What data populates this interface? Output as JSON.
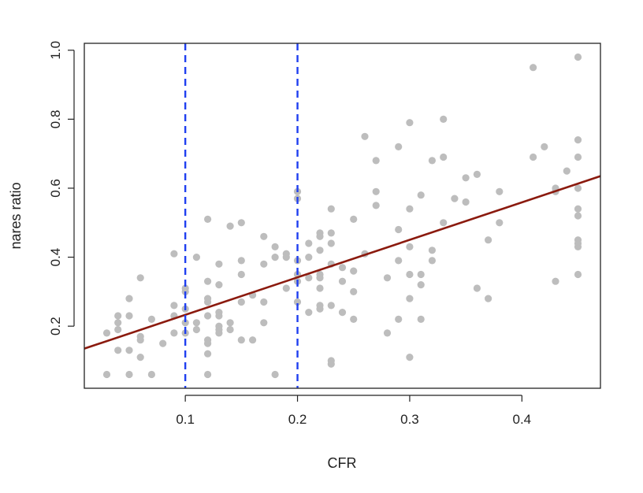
{
  "chart_data": {
    "type": "scatter",
    "title": "",
    "xlabel": "CFR",
    "ylabel": "nares ratio",
    "xlim": [
      0.01,
      0.47
    ],
    "ylim": [
      0.02,
      1.02
    ],
    "xticks": [
      {
        "value": 0.1,
        "label": "0.1"
      },
      {
        "value": 0.2,
        "label": "0.2"
      },
      {
        "value": 0.3,
        "label": "0.3"
      },
      {
        "value": 0.4,
        "label": "0.4"
      }
    ],
    "yticks": [
      {
        "value": 0.2,
        "label": "0.2"
      },
      {
        "value": 0.4,
        "label": "0.4"
      },
      {
        "value": 0.6,
        "label": "0.6"
      },
      {
        "value": 0.8,
        "label": "0.8"
      },
      {
        "value": 1.0,
        "label": "1.0"
      }
    ],
    "grid": false,
    "legend": "none",
    "colors": {
      "points": "#bdbdbd",
      "regression": "#8b1a0e",
      "vlines": "#1f3ff0",
      "axis": "#222222"
    },
    "vlines": [
      0.1,
      0.2
    ],
    "regression_line": {
      "x": [
        0.01,
        0.47
      ],
      "y": [
        0.135,
        0.635
      ]
    },
    "points": [
      [
        0.03,
        0.18
      ],
      [
        0.03,
        0.06
      ],
      [
        0.04,
        0.23
      ],
      [
        0.04,
        0.21
      ],
      [
        0.04,
        0.19
      ],
      [
        0.04,
        0.13
      ],
      [
        0.05,
        0.28
      ],
      [
        0.05,
        0.23
      ],
      [
        0.05,
        0.13
      ],
      [
        0.05,
        0.06
      ],
      [
        0.06,
        0.34
      ],
      [
        0.06,
        0.17
      ],
      [
        0.06,
        0.16
      ],
      [
        0.06,
        0.11
      ],
      [
        0.07,
        0.22
      ],
      [
        0.07,
        0.06
      ],
      [
        0.08,
        0.15
      ],
      [
        0.09,
        0.41
      ],
      [
        0.09,
        0.26
      ],
      [
        0.09,
        0.23
      ],
      [
        0.09,
        0.18
      ],
      [
        0.1,
        0.31
      ],
      [
        0.1,
        0.3
      ],
      [
        0.1,
        0.25
      ],
      [
        0.1,
        0.21
      ],
      [
        0.1,
        0.18
      ],
      [
        0.11,
        0.4
      ],
      [
        0.11,
        0.21
      ],
      [
        0.11,
        0.19
      ],
      [
        0.12,
        0.51
      ],
      [
        0.12,
        0.33
      ],
      [
        0.12,
        0.28
      ],
      [
        0.12,
        0.27
      ],
      [
        0.12,
        0.23
      ],
      [
        0.12,
        0.16
      ],
      [
        0.12,
        0.15
      ],
      [
        0.12,
        0.12
      ],
      [
        0.12,
        0.06
      ],
      [
        0.13,
        0.38
      ],
      [
        0.13,
        0.32
      ],
      [
        0.13,
        0.24
      ],
      [
        0.13,
        0.23
      ],
      [
        0.13,
        0.2
      ],
      [
        0.13,
        0.19
      ],
      [
        0.13,
        0.18
      ],
      [
        0.14,
        0.49
      ],
      [
        0.14,
        0.21
      ],
      [
        0.14,
        0.19
      ],
      [
        0.15,
        0.5
      ],
      [
        0.15,
        0.39
      ],
      [
        0.15,
        0.35
      ],
      [
        0.15,
        0.27
      ],
      [
        0.15,
        0.16
      ],
      [
        0.16,
        0.29
      ],
      [
        0.16,
        0.16
      ],
      [
        0.17,
        0.46
      ],
      [
        0.17,
        0.38
      ],
      [
        0.17,
        0.27
      ],
      [
        0.17,
        0.21
      ],
      [
        0.18,
        0.43
      ],
      [
        0.18,
        0.4
      ],
      [
        0.18,
        0.06
      ],
      [
        0.19,
        0.41
      ],
      [
        0.19,
        0.4
      ],
      [
        0.19,
        0.31
      ],
      [
        0.2,
        0.59
      ],
      [
        0.2,
        0.57
      ],
      [
        0.2,
        0.39
      ],
      [
        0.2,
        0.35
      ],
      [
        0.2,
        0.33
      ],
      [
        0.2,
        0.27
      ],
      [
        0.21,
        0.44
      ],
      [
        0.21,
        0.4
      ],
      [
        0.21,
        0.34
      ],
      [
        0.21,
        0.24
      ],
      [
        0.22,
        0.47
      ],
      [
        0.22,
        0.46
      ],
      [
        0.22,
        0.42
      ],
      [
        0.22,
        0.35
      ],
      [
        0.22,
        0.34
      ],
      [
        0.22,
        0.31
      ],
      [
        0.22,
        0.26
      ],
      [
        0.22,
        0.25
      ],
      [
        0.23,
        0.54
      ],
      [
        0.23,
        0.47
      ],
      [
        0.23,
        0.44
      ],
      [
        0.23,
        0.38
      ],
      [
        0.23,
        0.26
      ],
      [
        0.23,
        0.1
      ],
      [
        0.23,
        0.09
      ],
      [
        0.24,
        0.37
      ],
      [
        0.24,
        0.33
      ],
      [
        0.24,
        0.24
      ],
      [
        0.25,
        0.51
      ],
      [
        0.25,
        0.36
      ],
      [
        0.25,
        0.3
      ],
      [
        0.25,
        0.22
      ],
      [
        0.26,
        0.75
      ],
      [
        0.26,
        0.41
      ],
      [
        0.27,
        0.68
      ],
      [
        0.27,
        0.59
      ],
      [
        0.27,
        0.55
      ],
      [
        0.28,
        0.34
      ],
      [
        0.28,
        0.18
      ],
      [
        0.29,
        0.72
      ],
      [
        0.29,
        0.48
      ],
      [
        0.29,
        0.39
      ],
      [
        0.29,
        0.22
      ],
      [
        0.3,
        0.79
      ],
      [
        0.3,
        0.54
      ],
      [
        0.3,
        0.43
      ],
      [
        0.3,
        0.35
      ],
      [
        0.3,
        0.28
      ],
      [
        0.3,
        0.11
      ],
      [
        0.31,
        0.58
      ],
      [
        0.31,
        0.35
      ],
      [
        0.31,
        0.32
      ],
      [
        0.31,
        0.22
      ],
      [
        0.32,
        0.68
      ],
      [
        0.32,
        0.42
      ],
      [
        0.32,
        0.39
      ],
      [
        0.33,
        0.8
      ],
      [
        0.33,
        0.69
      ],
      [
        0.33,
        0.5
      ],
      [
        0.34,
        0.57
      ],
      [
        0.35,
        0.63
      ],
      [
        0.35,
        0.56
      ],
      [
        0.36,
        0.64
      ],
      [
        0.36,
        0.31
      ],
      [
        0.37,
        0.45
      ],
      [
        0.37,
        0.28
      ],
      [
        0.38,
        0.59
      ],
      [
        0.38,
        0.5
      ],
      [
        0.41,
        0.95
      ],
      [
        0.41,
        0.69
      ],
      [
        0.42,
        0.72
      ],
      [
        0.43,
        0.6
      ],
      [
        0.43,
        0.59
      ],
      [
        0.43,
        0.33
      ],
      [
        0.44,
        0.65
      ],
      [
        0.45,
        0.98
      ],
      [
        0.45,
        0.74
      ],
      [
        0.45,
        0.69
      ],
      [
        0.45,
        0.6
      ],
      [
        0.45,
        0.54
      ],
      [
        0.45,
        0.52
      ],
      [
        0.45,
        0.45
      ],
      [
        0.45,
        0.44
      ],
      [
        0.45,
        0.43
      ],
      [
        0.45,
        0.35
      ]
    ]
  }
}
